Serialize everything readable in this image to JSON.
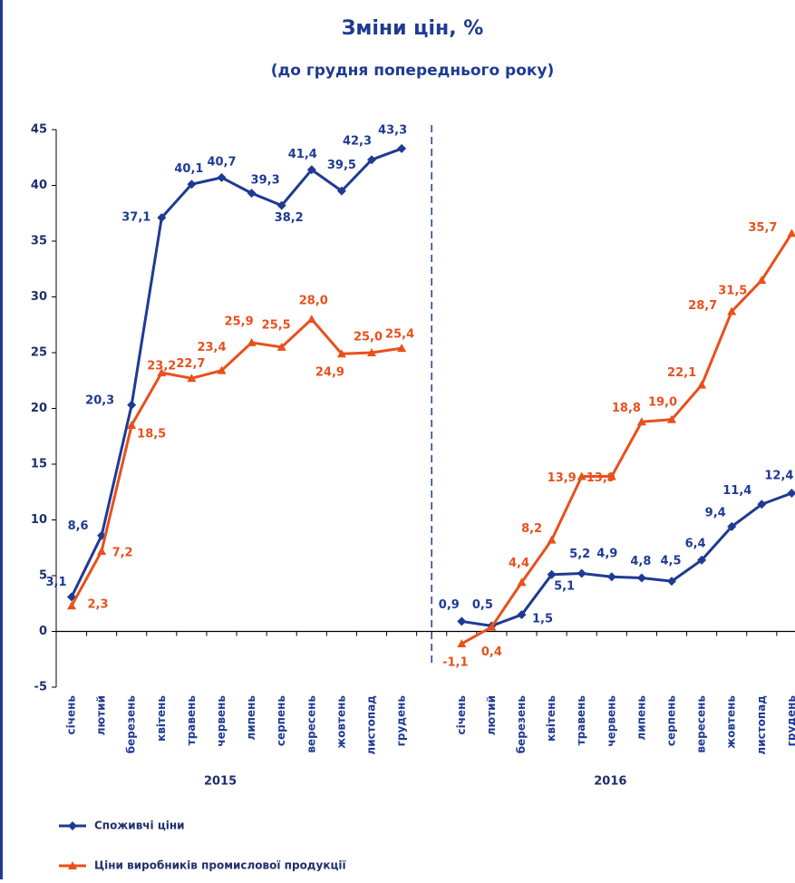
{
  "chart_data": {
    "type": "line",
    "title": "Зміни цін, %",
    "subtitle": "(до грудня попереднього року)",
    "categories": [
      "січень",
      "лютий",
      "березень",
      "квітень",
      "травень",
      "червень",
      "липень",
      "серпень",
      "вересень",
      "жовтень",
      "листопад",
      "грудень",
      null,
      "січень",
      "лютий",
      "березень",
      "квітень",
      "травень",
      "червень",
      "липень",
      "серпень",
      "вересень",
      "жовтень",
      "листопад",
      "грудень"
    ],
    "group_labels": [
      "2015",
      "2016"
    ],
    "series": [
      {
        "name": "Споживчі ціни",
        "color": "#1f3a93",
        "marker": "diamond",
        "values": [
          3.1,
          8.6,
          20.3,
          37.1,
          40.1,
          40.7,
          39.3,
          38.2,
          41.4,
          39.5,
          42.3,
          43.3,
          null,
          0.9,
          0.5,
          1.5,
          5.1,
          5.2,
          4.9,
          4.8,
          4.5,
          6.4,
          9.4,
          11.4,
          12.4
        ],
        "value_labels": [
          "3,1",
          "8,6",
          "20,3",
          "37,1",
          "40,1",
          "40,7",
          "39,3",
          "38,2",
          "41,4",
          "39,5",
          "42,3",
          "43,3",
          null,
          "0,9",
          "0,5",
          "1,5",
          "5,1",
          "5,2",
          "4,9",
          "4,8",
          "4,5",
          "6,4",
          "9,4",
          "11,4",
          "12,4"
        ]
      },
      {
        "name": "Ціни виробників промислової продукції",
        "color": "#e8501c",
        "marker": "triangle",
        "values": [
          2.3,
          7.2,
          18.5,
          23.2,
          22.7,
          23.4,
          25.9,
          25.5,
          28.0,
          24.9,
          25.0,
          25.4,
          null,
          -1.1,
          0.4,
          4.4,
          8.2,
          13.9,
          13.9,
          18.8,
          19.0,
          22.1,
          28.7,
          31.5,
          35.7
        ],
        "value_labels": [
          "2,3",
          "7,2",
          "18,5",
          "23,2",
          "22,7",
          "23,4",
          "25,9",
          "25,5",
          "28,0",
          "24,9",
          "25,0",
          "25,4",
          null,
          "-1,1",
          "0,4",
          "4,4",
          "8,2",
          "13,9",
          "13,9",
          "18,8",
          "19,0",
          "22,1",
          "28,7",
          "31,5",
          "35,7"
        ]
      }
    ],
    "ylim": [
      -5,
      45
    ],
    "yticks": [
      -5,
      0,
      5,
      10,
      15,
      20,
      25,
      30,
      35,
      40,
      45
    ],
    "grid": false,
    "legend": "bottom-left"
  }
}
